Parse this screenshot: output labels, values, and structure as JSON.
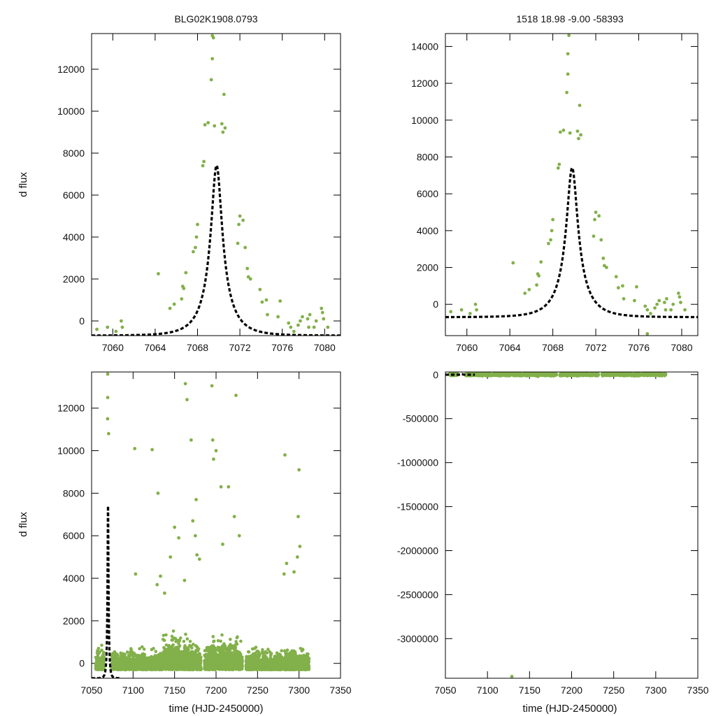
{
  "figure": {
    "left_title": "BLG02K1908.0793",
    "right_title": "1518  18.98  -9.00  -58393",
    "ylabel": "d flux",
    "xlabel": "time (HJD-2450000)"
  },
  "colors": {
    "data": "#82b04a",
    "model": "#000000",
    "axis": "#000000"
  },
  "chart_data": [
    {
      "id": "top-left",
      "type": "scatter",
      "title": "BLG02K1908.0793",
      "ylabel": "d flux",
      "xlabel": "",
      "xlim": [
        7058,
        7081.5
      ],
      "ylim": [
        -700,
        13700
      ],
      "xticks": [
        7060,
        7064,
        7068,
        7072,
        7076,
        7080
      ],
      "yticks": [
        0,
        2000,
        4000,
        6000,
        8000,
        10000,
        12000
      ],
      "model": {
        "name": "microlensing fit",
        "t0": 7069.8,
        "tE": 2.3,
        "u0": 0.225,
        "F": 2300,
        "base": -700
      },
      "series": [
        {
          "name": "photometry",
          "x": [
            7058.5,
            7059.5,
            7060.3,
            7060.8,
            7060.9,
            7064.3,
            7065.4,
            7065.8,
            7066.5,
            7066.6,
            7066.7,
            7066.9,
            7067.6,
            7067.8,
            7067.9,
            7068.0,
            7068.5,
            7068.6,
            7068.7,
            7069.0,
            7069.3,
            7069.4,
            7069.4,
            7069.5,
            7069.6,
            7070.3,
            7070.4,
            7070.5,
            7070.6,
            7071.8,
            7071.9,
            7072.0,
            7072.3,
            7072.5,
            7072.7,
            7072.8,
            7073.0,
            7073.9,
            7074.1,
            7074.5,
            7074.6,
            7075.6,
            7075.8,
            7076.6,
            7076.8,
            7077.1,
            7077.5,
            7077.7,
            7077.9,
            7078.4,
            7078.5,
            7078.6,
            7079.0,
            7079.2,
            7079.7,
            7079.8,
            7079.9,
            7080.3
          ],
          "y": [
            -400,
            -300,
            -500,
            0,
            -300,
            2250,
            600,
            800,
            1050,
            1650,
            1550,
            2300,
            3300,
            3500,
            4000,
            4600,
            7400,
            7600,
            9350,
            9450,
            11500,
            12500,
            13600,
            13500,
            9300,
            9400,
            9000,
            10800,
            9200,
            3700,
            4600,
            5000,
            4800,
            3500,
            2500,
            2100,
            2000,
            1500,
            900,
            1000,
            300,
            200,
            950,
            -100,
            -300,
            -500,
            -200,
            0,
            200,
            100,
            -300,
            300,
            -300,
            0,
            600,
            400,
            100,
            -300
          ]
        }
      ]
    },
    {
      "id": "top-right",
      "type": "scatter",
      "title": "1518  18.98  -9.00  -58393",
      "ylabel": "",
      "xlabel": "",
      "xlim": [
        7058,
        7081.5
      ],
      "ylim": [
        -1700,
        14700
      ],
      "xticks": [
        7060,
        7064,
        7068,
        7072,
        7076,
        7080
      ],
      "yticks": [
        0,
        2000,
        4000,
        6000,
        8000,
        10000,
        12000,
        14000
      ],
      "model": {
        "name": "microlensing fit",
        "t0": 7069.8,
        "tE": 2.3,
        "u0": 0.225,
        "F": 2300,
        "base": -700
      },
      "series": [
        {
          "name": "photometry",
          "x": [
            7058.5,
            7059.5,
            7060.3,
            7060.8,
            7060.9,
            7064.3,
            7065.4,
            7065.8,
            7066.5,
            7066.6,
            7066.7,
            7066.9,
            7067.6,
            7067.8,
            7067.9,
            7068.0,
            7068.5,
            7068.6,
            7068.7,
            7069.0,
            7069.3,
            7069.4,
            7069.4,
            7069.5,
            7069.6,
            7070.3,
            7070.4,
            7070.5,
            7070.6,
            7071.8,
            7071.9,
            7072.0,
            7072.3,
            7072.5,
            7072.7,
            7072.8,
            7073.0,
            7073.9,
            7074.1,
            7074.5,
            7074.6,
            7075.6,
            7075.8,
            7076.6,
            7076.8,
            7077.1,
            7077.5,
            7077.7,
            7077.9,
            7078.4,
            7078.5,
            7078.6,
            7079.0,
            7079.2,
            7079.7,
            7079.8,
            7079.9,
            7080.3,
            7076.8
          ],
          "y": [
            -400,
            -300,
            -500,
            0,
            -300,
            2250,
            600,
            800,
            1050,
            1650,
            1550,
            2300,
            3300,
            3500,
            4000,
            4600,
            7400,
            7600,
            9350,
            9450,
            11500,
            12500,
            13600,
            14600,
            9300,
            9400,
            9000,
            10800,
            9200,
            3700,
            4600,
            5000,
            4800,
            3500,
            2500,
            2100,
            2000,
            1500,
            900,
            1000,
            300,
            200,
            950,
            -100,
            -300,
            -500,
            -200,
            0,
            200,
            100,
            -300,
            300,
            -300,
            0,
            600,
            400,
            100,
            -300,
            -1600
          ]
        }
      ]
    },
    {
      "id": "bottom-left",
      "type": "scatter",
      "title": "",
      "ylabel": "d flux",
      "xlabel": "time (HJD-2450000)",
      "xlim": [
        7050,
        7350
      ],
      "ylim": [
        -700,
        13700
      ],
      "xticks": [
        7050,
        7100,
        7150,
        7200,
        7250,
        7300,
        7350
      ],
      "yticks": [
        0,
        2000,
        4000,
        6000,
        8000,
        10000,
        12000
      ],
      "model": {
        "name": "microlensing fit",
        "t0": 7069.8,
        "tE": 2.3,
        "u0": 0.225,
        "F": 2300,
        "base": -700
      },
      "series": [
        {
          "name": "photometry (outliers)",
          "x": [
            7069.4,
            7069.4,
            7069.3,
            7070.5,
            7102,
            7103,
            7123,
            7130,
            7133,
            7145,
            7150,
            7155,
            7163,
            7165,
            7170,
            7172,
            7175,
            7176,
            7177,
            7180,
            7195,
            7196,
            7197,
            7200,
            7206,
            7208,
            7215,
            7222,
            7224,
            7228,
            7283,
            7285,
            7298,
            7299,
            7300,
            7301,
            7282,
            7294,
            7129,
            7138,
            7162
          ],
          "y": [
            13600,
            12500,
            11500,
            10800,
            10100,
            4200,
            10050,
            8000,
            4100,
            5000,
            6400,
            5900,
            13150,
            12400,
            10500,
            6700,
            6000,
            7700,
            5100,
            4900,
            13050,
            10500,
            9600,
            10000,
            8300,
            5600,
            8300,
            6900,
            12600,
            6000,
            9800,
            4700,
            5000,
            6900,
            9100,
            5500,
            4200,
            4300,
            3700,
            3300,
            3900
          ]
        }
      ]
    },
    {
      "id": "bottom-right",
      "type": "scatter",
      "title": "",
      "ylabel": "",
      "xlabel": "time (HJD-2450000)",
      "xlim": [
        7050,
        7350
      ],
      "ylim": [
        -3450000,
        30000
      ],
      "xticks": [
        7050,
        7100,
        7150,
        7200,
        7250,
        7300,
        7350
      ],
      "yticks": [
        0,
        -500000,
        -1000000,
        -1500000,
        -2000000,
        -2500000,
        -3000000
      ],
      "model": {
        "name": "microlensing fit",
        "t0": 7069.8,
        "tE": 2.3,
        "u0": 0.225,
        "F": 2300,
        "base": -700
      },
      "series": [
        {
          "name": "photometry",
          "x": [
            7129,
            7213,
            7160,
            7195,
            7104,
            7280
          ],
          "y": [
            -3430000,
            60000,
            -20000,
            -15000,
            -10000,
            -12000
          ]
        }
      ]
    }
  ]
}
